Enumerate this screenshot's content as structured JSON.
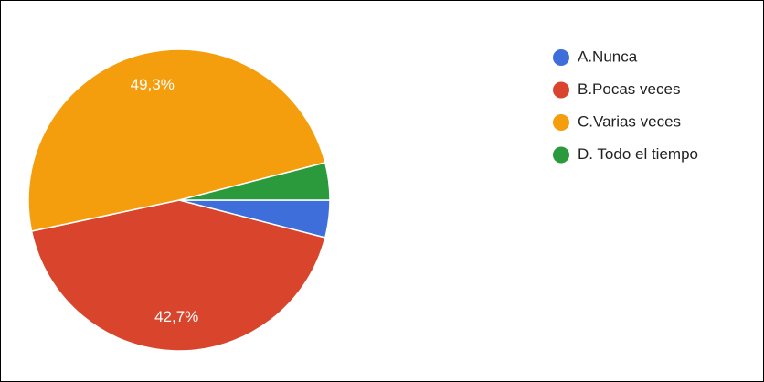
{
  "chart_data": {
    "type": "pie",
    "categories": [
      "A.Nunca",
      "B.Pocas veces",
      "C.Varias veces",
      "D. Todo el tiempo"
    ],
    "values": [
      4.0,
      42.7,
      49.3,
      4.0
    ],
    "value_labels": [
      null,
      "42,7%",
      "49,3%",
      null
    ],
    "colors": [
      "#3e6ed9",
      "#d9452c",
      "#f59e0d",
      "#2a9a3c"
    ],
    "legend": "right"
  }
}
